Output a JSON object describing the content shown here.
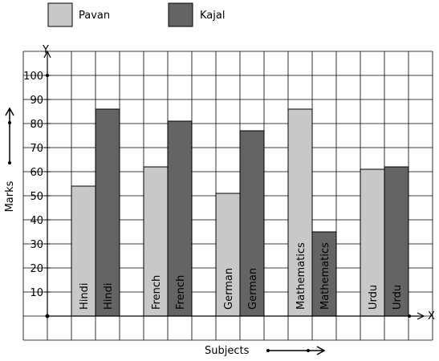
{
  "chart_data": {
    "type": "bar",
    "categories": [
      "Hindi",
      "French",
      "German",
      "Mathematics",
      "Urdu"
    ],
    "series": [
      {
        "name": "Pavan",
        "color": "#c8c8c8",
        "values": [
          54,
          62,
          51,
          86,
          61
        ]
      },
      {
        "name": "Kajal",
        "color": "#646464",
        "values": [
          86,
          81,
          77,
          35,
          62
        ]
      }
    ],
    "y_ticks": [
      "10",
      "20",
      "30",
      "40",
      "50",
      "60",
      "70",
      "80",
      "90",
      "100"
    ],
    "ylim": [
      0,
      110
    ],
    "grid": true,
    "legend": "top-left",
    "axis_letters": {
      "x": "X",
      "y": "Y"
    },
    "xlabel": "Subjects",
    "ylabel": "Marks"
  }
}
